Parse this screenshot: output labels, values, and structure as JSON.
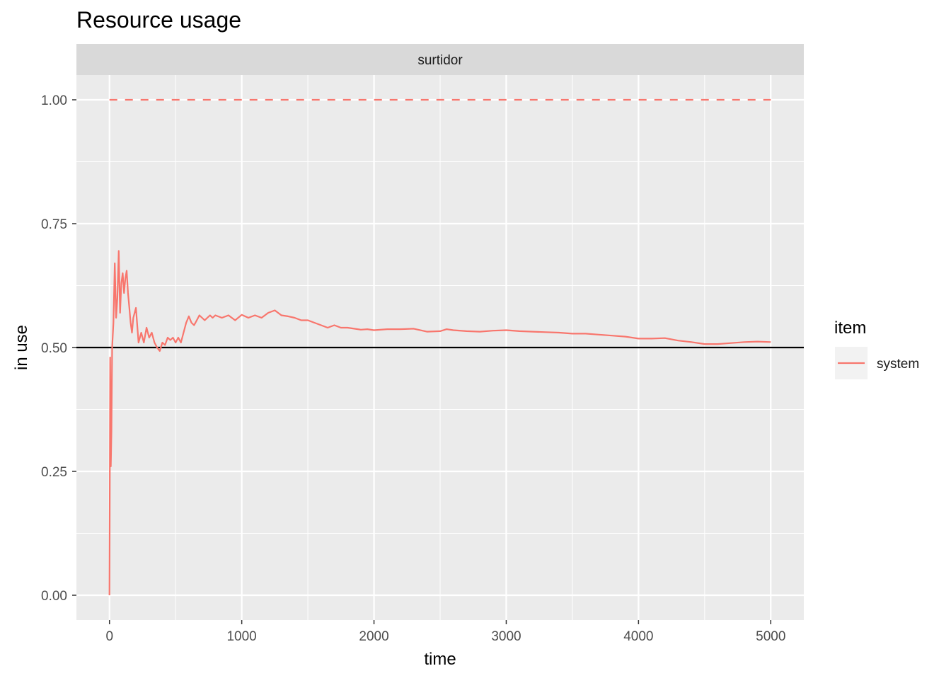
{
  "chart_data": {
    "type": "line",
    "title": "Resource usage",
    "facet_label": "surtidor",
    "xlabel": "time",
    "ylabel": "in use",
    "xlim": [
      -250,
      5250
    ],
    "ylim": [
      -0.05,
      1.05
    ],
    "x_ticks": [
      0,
      1000,
      2000,
      3000,
      4000,
      5000
    ],
    "x_tick_labels": [
      "0",
      "1000",
      "2000",
      "3000",
      "4000",
      "5000"
    ],
    "y_ticks": [
      0,
      0.25,
      0.5,
      0.75,
      1.0
    ],
    "y_tick_labels": [
      "0.00",
      "0.25",
      "0.50",
      "0.75",
      "1.00"
    ],
    "grid": true,
    "legend": {
      "title": "item",
      "position": "right",
      "entries": [
        "system"
      ]
    },
    "reference_lines": [
      {
        "y": 1.0,
        "style": "dashed",
        "color": "#F8766D"
      },
      {
        "y": 0.5,
        "style": "solid",
        "color": "#000000"
      }
    ],
    "series": [
      {
        "name": "system",
        "color": "#F8766D",
        "x": [
          0,
          5,
          10,
          15,
          20,
          30,
          40,
          50,
          60,
          70,
          80,
          90,
          100,
          110,
          120,
          130,
          140,
          150,
          160,
          170,
          180,
          200,
          220,
          240,
          260,
          280,
          300,
          320,
          340,
          360,
          380,
          400,
          420,
          440,
          460,
          480,
          500,
          520,
          540,
          560,
          580,
          600,
          620,
          640,
          660,
          680,
          700,
          720,
          740,
          760,
          780,
          800,
          850,
          900,
          950,
          1000,
          1050,
          1100,
          1150,
          1200,
          1250,
          1300,
          1350,
          1400,
          1450,
          1500,
          1550,
          1600,
          1650,
          1700,
          1750,
          1800,
          1850,
          1900,
          1950,
          2000,
          2100,
          2200,
          2300,
          2400,
          2500,
          2550,
          2600,
          2700,
          2800,
          2900,
          3000,
          3100,
          3200,
          3300,
          3400,
          3500,
          3600,
          3700,
          3800,
          3900,
          4000,
          4100,
          4200,
          4300,
          4400,
          4500,
          4600,
          4700,
          4800,
          4900,
          5000
        ],
        "values": [
          0.0,
          0.48,
          0.26,
          0.33,
          0.5,
          0.55,
          0.67,
          0.56,
          0.6,
          0.695,
          0.57,
          0.63,
          0.65,
          0.61,
          0.64,
          0.655,
          0.61,
          0.58,
          0.55,
          0.53,
          0.56,
          0.58,
          0.51,
          0.53,
          0.51,
          0.54,
          0.52,
          0.53,
          0.51,
          0.5,
          0.493,
          0.51,
          0.505,
          0.52,
          0.515,
          0.52,
          0.51,
          0.52,
          0.51,
          0.53,
          0.55,
          0.563,
          0.55,
          0.545,
          0.555,
          0.565,
          0.56,
          0.555,
          0.56,
          0.565,
          0.56,
          0.565,
          0.56,
          0.565,
          0.555,
          0.566,
          0.56,
          0.565,
          0.56,
          0.57,
          0.575,
          0.565,
          0.563,
          0.56,
          0.555,
          0.555,
          0.55,
          0.545,
          0.54,
          0.545,
          0.54,
          0.54,
          0.538,
          0.536,
          0.537,
          0.535,
          0.537,
          0.537,
          0.538,
          0.532,
          0.533,
          0.537,
          0.535,
          0.533,
          0.532,
          0.534,
          0.535,
          0.533,
          0.532,
          0.531,
          0.53,
          0.528,
          0.528,
          0.526,
          0.524,
          0.522,
          0.518,
          0.518,
          0.519,
          0.514,
          0.511,
          0.507,
          0.507,
          0.509,
          0.511,
          0.512,
          0.511
        ]
      }
    ]
  }
}
